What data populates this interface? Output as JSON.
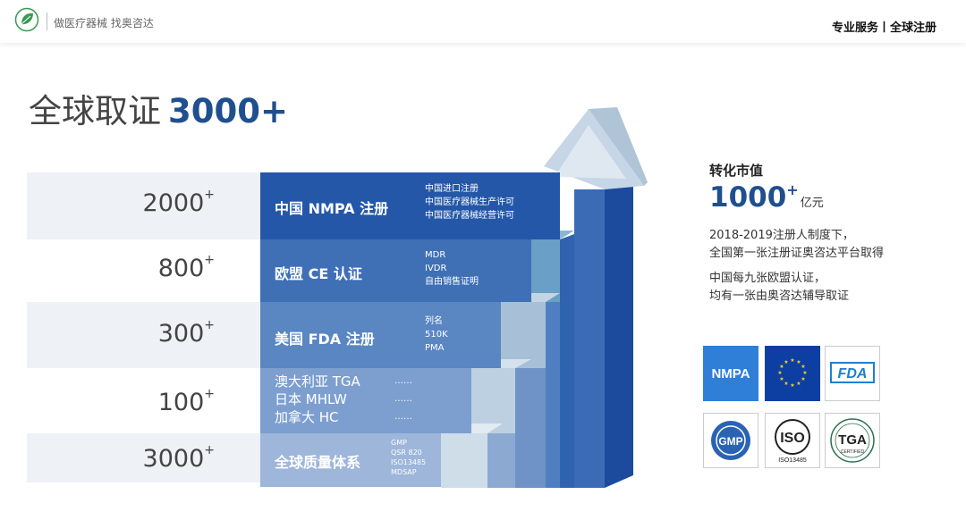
{
  "header": {
    "tagline": "做医疗器械  找奥咨达",
    "right_text": "专业服务丨全球注册",
    "logo_icon": "leaf-logo"
  },
  "title": {
    "prefix": "全球取证",
    "number": "3000+"
  },
  "rows": [
    {
      "count": "2000",
      "sup": "+",
      "name": "中国 NMPA 注册",
      "details": [
        "中国进口注册",
        "中国医疗器械生产许可",
        "中国医疗器械经营许可"
      ]
    },
    {
      "count": "800",
      "sup": "+",
      "name": "欧盟 CE 认证",
      "details": [
        "MDR",
        "IVDR",
        "自由销售证明"
      ]
    },
    {
      "count": "300",
      "sup": "+",
      "name": "美国 FDA 注册",
      "details": [
        "列名",
        "510K",
        "PMA"
      ]
    },
    {
      "count": "100",
      "sup": "+",
      "names": [
        "澳大利亚 TGA",
        "日本 MHLW",
        "加拿大 HC"
      ],
      "details": [
        "……",
        "……",
        "……"
      ]
    },
    {
      "count": "3000",
      "sup": "+",
      "name": "全球质量体系",
      "details": [
        "GMP",
        "QSR 820",
        "ISO13485",
        "MDSAP"
      ]
    }
  ],
  "side": {
    "title": "转化市值",
    "value": "1000",
    "value_sup": "+",
    "unit": "亿元",
    "para1": [
      "2018-2019注册人制度下，",
      "全国第一张注册证奥咨达平台取得"
    ],
    "para2": [
      "中国每九张欧盟认证，",
      "均有一张由奥咨达辅导取证"
    ]
  },
  "badges": [
    {
      "icon": "nmpa-logo-icon",
      "text": "NMPA"
    },
    {
      "icon": "eu-flag-icon",
      "text": ""
    },
    {
      "icon": "fda-logo-icon",
      "text": "FDA"
    },
    {
      "icon": "gmp-seal-icon",
      "text": "GMP"
    },
    {
      "icon": "iso-logo-icon",
      "text": "ISO",
      "sub": "ISO13485"
    },
    {
      "icon": "tga-seal-icon",
      "text": "TGA",
      "sub": "CERTIFIED"
    }
  ],
  "colors": {
    "brand_blue": "#1f4f8f",
    "band_dark": "#2457a8",
    "band_mid": "#4a78ba",
    "band_light": "#6f93c6",
    "row_bg": "#eef1f6"
  }
}
